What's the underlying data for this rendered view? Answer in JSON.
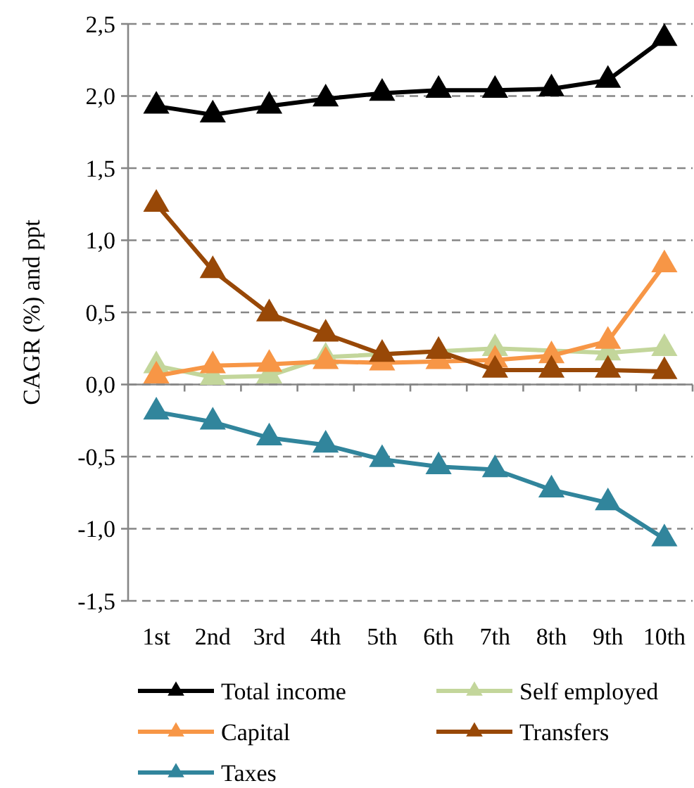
{
  "chart_data": {
    "type": "line",
    "ylabel": "CAGR (%) and ppt",
    "categories": [
      "1st",
      "2nd",
      "3rd",
      "4th",
      "5th",
      "6th",
      "7th",
      "8th",
      "9th",
      "10th"
    ],
    "series": [
      {
        "name": "Total income",
        "color": "#000000",
        "values": [
          1.93,
          1.87,
          1.93,
          1.98,
          2.02,
          2.04,
          2.04,
          2.05,
          2.11,
          2.4
        ]
      },
      {
        "name": "Self employed",
        "color": "#c3d69b",
        "values": [
          0.13,
          0.05,
          0.06,
          0.19,
          null,
          null,
          0.25,
          null,
          0.22,
          0.25
        ]
      },
      {
        "name": "Capital",
        "color": "#f79646",
        "values": [
          0.06,
          0.13,
          0.14,
          0.16,
          0.15,
          0.16,
          0.17,
          0.2,
          0.3,
          0.83
        ]
      },
      {
        "name": "Transfers",
        "color": "#984807",
        "values": [
          1.25,
          0.79,
          0.49,
          0.35,
          0.21,
          0.23,
          0.1,
          0.1,
          0.1,
          0.09
        ]
      },
      {
        "name": "Taxes",
        "color": "#31859c",
        "values": [
          -0.19,
          -0.26,
          -0.37,
          -0.42,
          -0.52,
          -0.57,
          -0.59,
          -0.73,
          -0.82,
          -1.07
        ]
      }
    ],
    "ylim": [
      -1.5,
      2.5
    ],
    "yticks": [
      {
        "value": -1.5,
        "label": "-1,5"
      },
      {
        "value": -1.0,
        "label": "-1,0"
      },
      {
        "value": -0.5,
        "label": "-0,5"
      },
      {
        "value": 0,
        "label": "0,0"
      },
      {
        "value": 0.5,
        "label": "0,5"
      },
      {
        "value": 1.0,
        "label": "1,0"
      },
      {
        "value": 1.5,
        "label": "1,5"
      },
      {
        "value": 2.0,
        "label": "2,0"
      },
      {
        "value": 2.5,
        "label": "2,5"
      }
    ],
    "grid": "y",
    "legend": "bottom",
    "marker": "triangle",
    "line_style": "solid"
  }
}
